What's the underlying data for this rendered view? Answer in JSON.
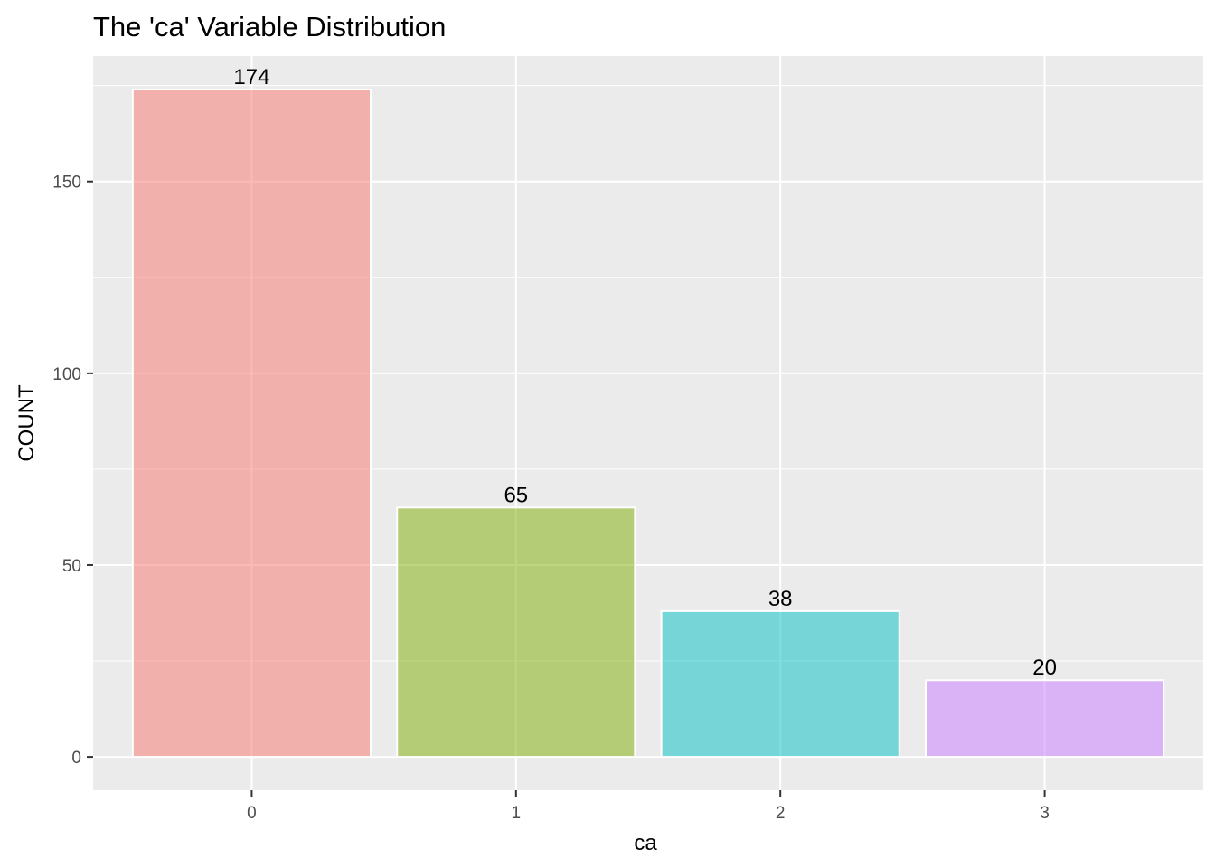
{
  "chart_data": {
    "type": "bar",
    "title": "The 'ca' Variable Distribution",
    "xlabel": "ca",
    "ylabel": "COUNT",
    "categories": [
      "0",
      "1",
      "2",
      "3"
    ],
    "values": [
      174,
      65,
      38,
      20
    ],
    "data_labels": [
      "174",
      "65",
      "38",
      "20"
    ],
    "ylim": [
      -8.7,
      182.7
    ],
    "yticks": [
      0,
      50,
      100,
      150
    ],
    "ytick_labels": [
      "0",
      "50",
      "100",
      "150"
    ],
    "grid": true,
    "legend": "none",
    "colors": [
      "#F8766D",
      "#7CAE00",
      "#00BFC4",
      "#C77CFF"
    ],
    "bar_opacity": 0.5,
    "panel_background": "#EBEBEB",
    "grid_color": "#FFFFFF"
  }
}
